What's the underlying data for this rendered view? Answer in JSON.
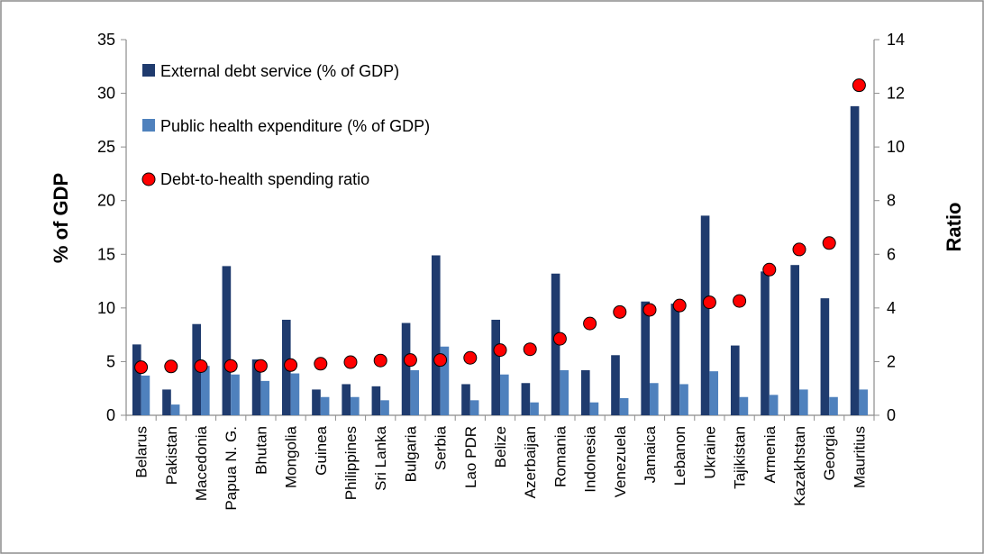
{
  "chart_data": {
    "type": "bar",
    "title": "",
    "ylabel": "% of GDP",
    "y2label": "Ratio",
    "ylim": [
      0,
      35
    ],
    "y2lim": [
      0,
      14
    ],
    "yticks": [
      0,
      5,
      10,
      15,
      20,
      25,
      30,
      35
    ],
    "y2ticks": [
      0,
      2,
      4,
      6,
      8,
      10,
      12,
      14
    ],
    "grid": false,
    "legend_position": "top-left",
    "categories": [
      "Belarus",
      "Pakistan",
      "Macedonia",
      "Papua N. G.",
      "Bhutan",
      "Mongolia",
      "Guinea",
      "Philippines",
      "Sri Lanka",
      "Bulgaria",
      "Serbia",
      "Lao PDR",
      "Belize",
      "Azerbaijan",
      "Romania",
      "Indonesia",
      "Venezuela",
      "Jamaica",
      "Lebanon",
      "Ukraine",
      "Tajikistan",
      "Armenia",
      "Kazakhstan",
      "Georgia",
      "Mauritius"
    ],
    "series": [
      {
        "name": "External debt service (% of GDP)",
        "kind": "bar",
        "axis": "left",
        "color": "#1f3b6e",
        "values": [
          6.6,
          2.4,
          8.5,
          13.9,
          5.2,
          8.9,
          2.4,
          2.9,
          2.7,
          8.6,
          14.9,
          2.9,
          8.9,
          3.0,
          13.2,
          4.2,
          5.6,
          10.6,
          10.4,
          18.6,
          6.5,
          13.4,
          14.0,
          10.9,
          28.8
        ]
      },
      {
        "name": "Public health expenditure (% of GDP)",
        "kind": "bar",
        "axis": "left",
        "color": "#4f81bd",
        "values": [
          3.7,
          1.0,
          4.6,
          3.8,
          3.2,
          3.9,
          1.7,
          1.7,
          1.4,
          4.2,
          6.4,
          1.4,
          3.8,
          1.2,
          4.2,
          1.2,
          1.6,
          3.0,
          2.9,
          4.1,
          1.7,
          1.9,
          2.4,
          1.7,
          2.4
        ]
      },
      {
        "name": "Debt-to-health spending ratio",
        "kind": "scatter",
        "axis": "right",
        "color": "#ff0000",
        "values": [
          1.79,
          1.82,
          1.83,
          1.84,
          1.84,
          1.87,
          1.92,
          1.98,
          2.04,
          2.06,
          2.06,
          2.14,
          2.43,
          2.46,
          2.85,
          3.42,
          3.85,
          3.93,
          4.09,
          4.21,
          4.26,
          5.43,
          6.18,
          6.42,
          12.3
        ]
      }
    ]
  }
}
